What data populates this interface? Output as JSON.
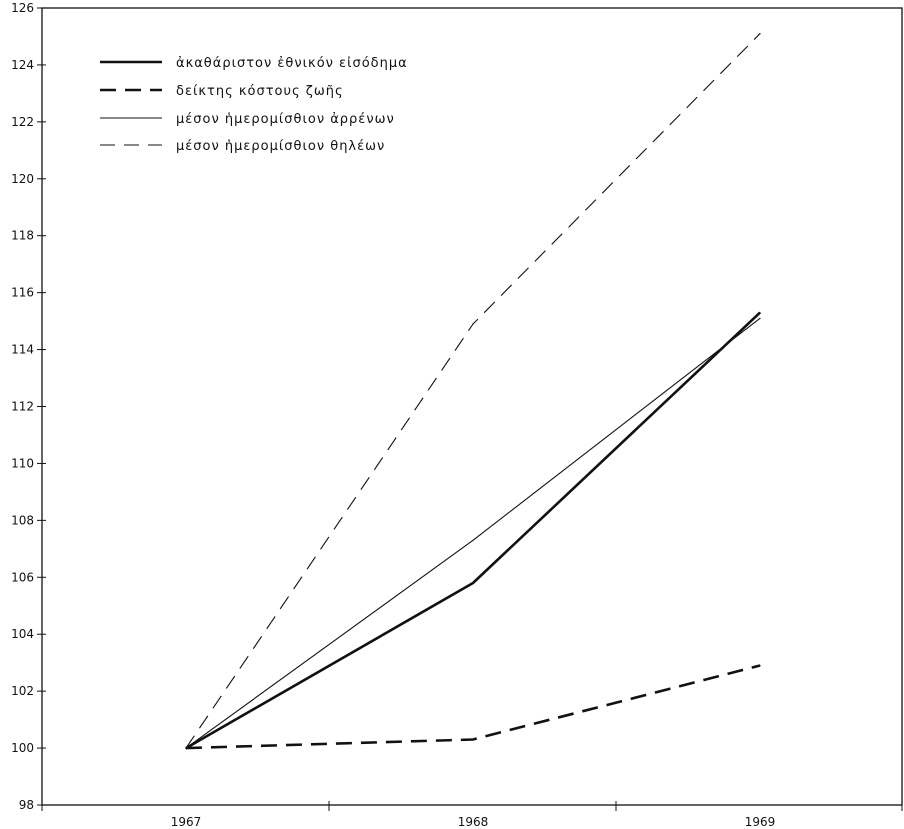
{
  "chart_data": {
    "type": "line",
    "title": "",
    "xlabel": "",
    "ylabel": "",
    "x": [
      "1967",
      "1968",
      "1969"
    ],
    "ylim": [
      98,
      126
    ],
    "yticks": [
      98,
      100,
      102,
      104,
      106,
      108,
      110,
      112,
      114,
      116,
      118,
      120,
      122,
      124,
      126
    ],
    "grid": false,
    "legend_position": "top-left",
    "series": [
      {
        "name": "ἀκαθάριστον ἐθνικόν εἰσόδημα",
        "values": [
          100,
          105.8,
          115.3
        ],
        "style": "solid-thick"
      },
      {
        "name": "δείκτης κόστους ζωῆς",
        "values": [
          100,
          100.3,
          102.9
        ],
        "style": "dashed-thick"
      },
      {
        "name": "μέσον ἡμερομίσθιον ἀρρένων",
        "values": [
          100,
          107.3,
          115.1
        ],
        "style": "solid-thin"
      },
      {
        "name": "μέσον ἡμερομίσθιον θηλέων",
        "values": [
          100,
          114.9,
          125.1
        ],
        "style": "dashed-thin"
      }
    ]
  }
}
